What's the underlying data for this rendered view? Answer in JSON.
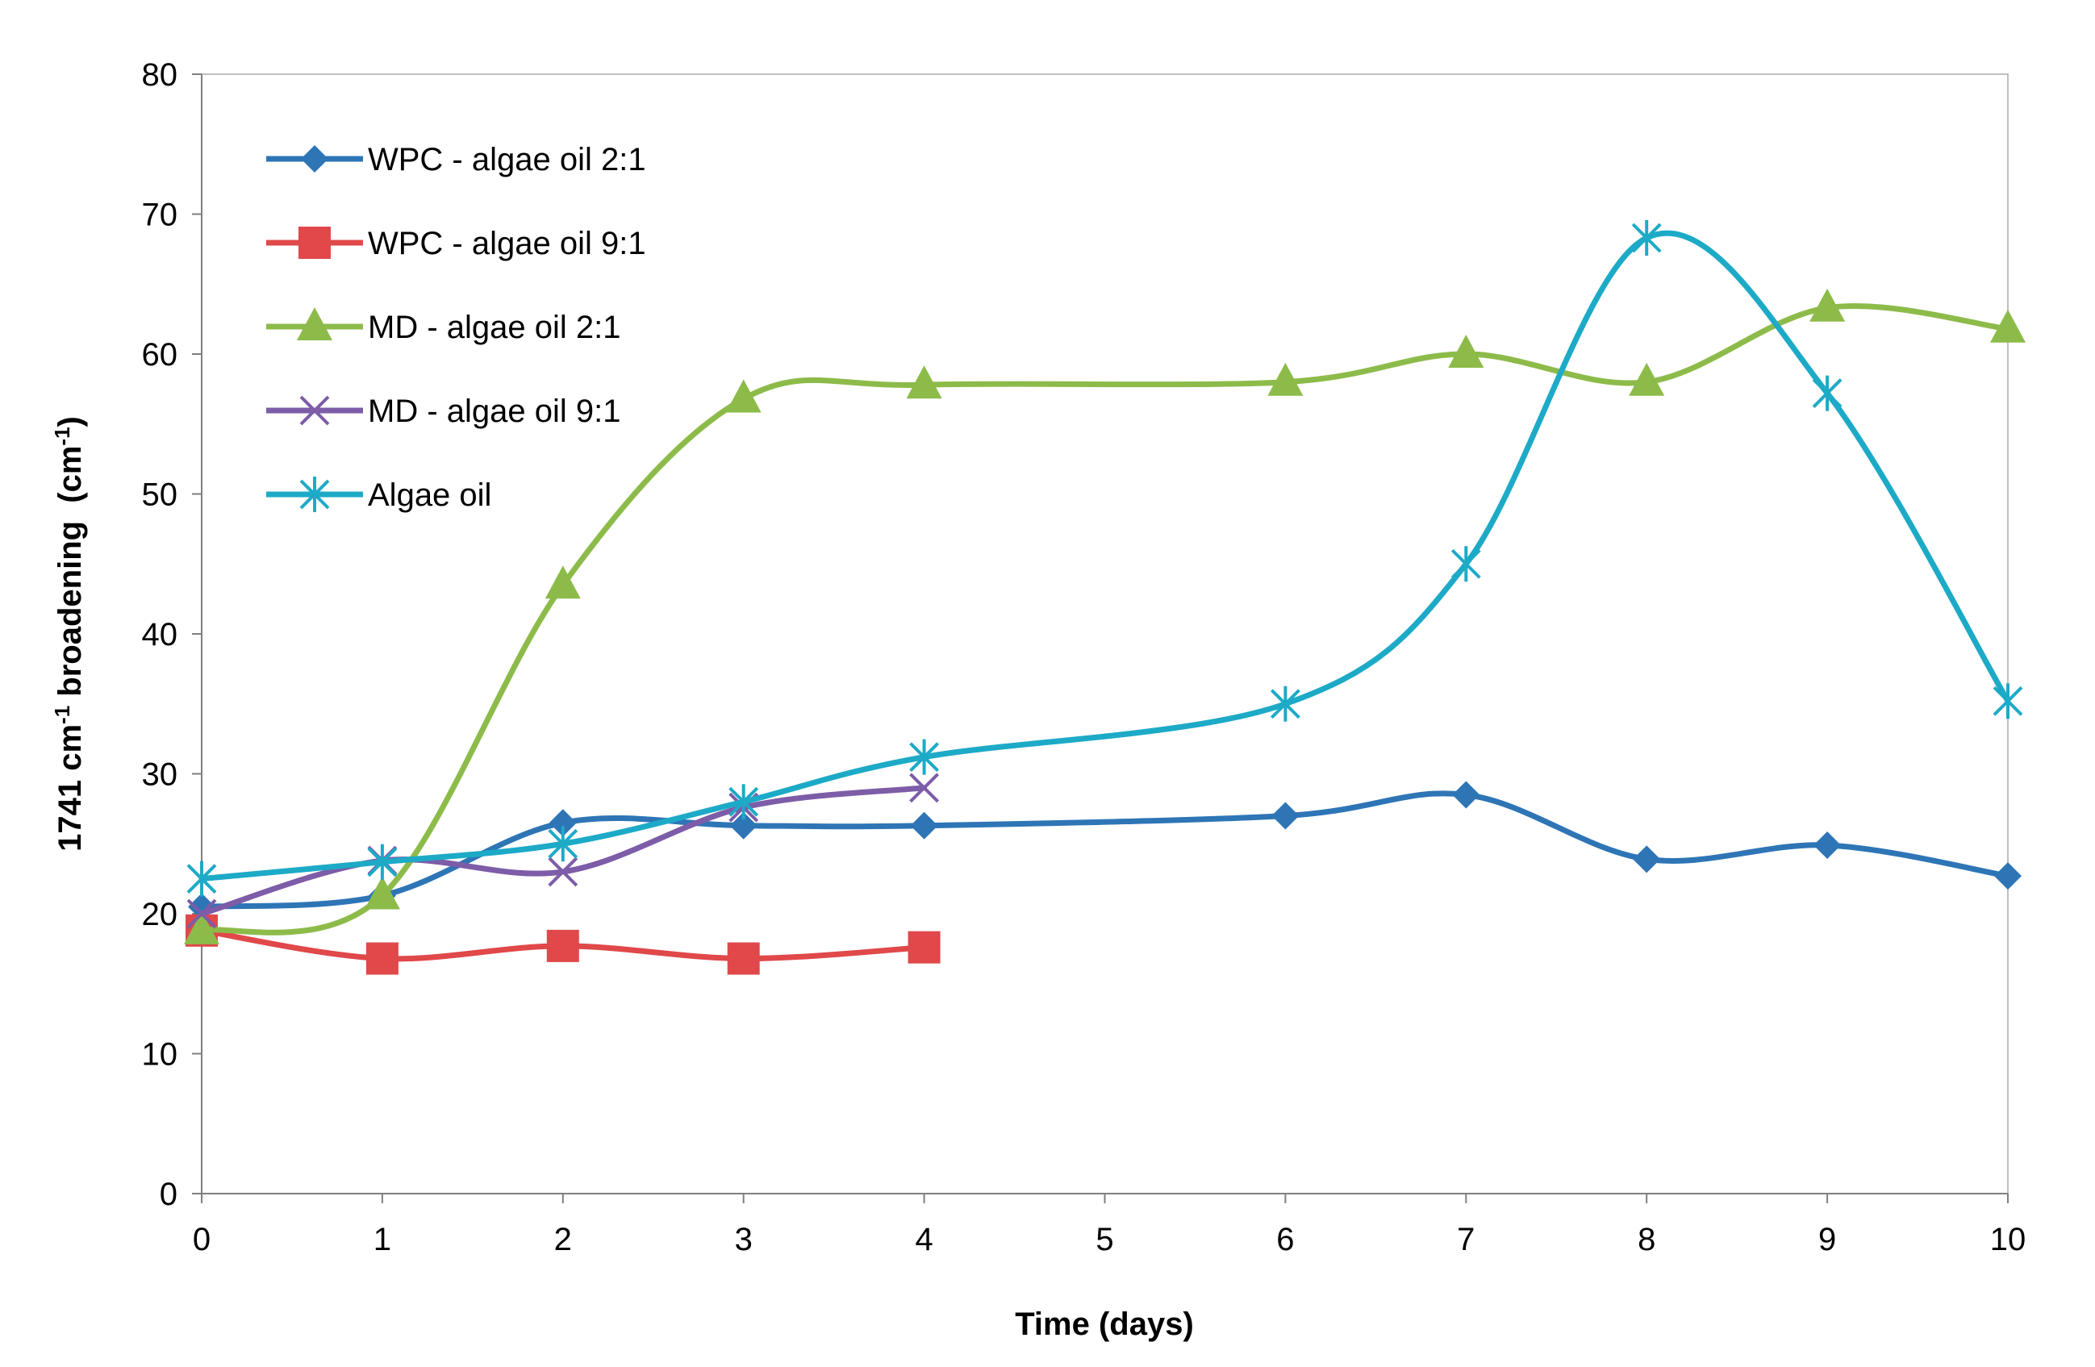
{
  "chart_data": {
    "type": "line",
    "title": "",
    "xlabel": "Time (days)",
    "ylabel": {
      "prefix": "1741 cm",
      "sup1": "-1",
      "middle": " broadening  (cm",
      "sup2": "-1",
      "suffix": ")"
    },
    "xlim": [
      0,
      10
    ],
    "ylim": [
      0,
      80
    ],
    "xticks": [
      {
        "value": 0,
        "label": "0"
      },
      {
        "value": 1,
        "label": "1"
      },
      {
        "value": 2,
        "label": "2"
      },
      {
        "value": 3,
        "label": "3"
      },
      {
        "value": 4,
        "label": "4"
      },
      {
        "value": 5,
        "label": "5"
      },
      {
        "value": 6,
        "label": "6"
      },
      {
        "value": 7,
        "label": "7"
      },
      {
        "value": 8,
        "label": "8"
      },
      {
        "value": 9,
        "label": "9"
      },
      {
        "value": 10,
        "label": "10"
      }
    ],
    "yticks": [
      0,
      10,
      20,
      30,
      40,
      50,
      60,
      70,
      80
    ],
    "grid": false,
    "legend_position": "top-left",
    "series": [
      {
        "name": "WPC - algae oil 2:1",
        "color": "#2E75B6",
        "marker": "diamond",
        "x": [
          0,
          1,
          2,
          3,
          4,
          6,
          7,
          8,
          9,
          10
        ],
        "y": [
          20.5,
          21.3,
          26.5,
          26.3,
          26.3,
          27.0,
          28.5,
          23.9,
          24.9,
          22.7
        ]
      },
      {
        "name": "WPC - algae oil 9:1",
        "color": "#E0484A",
        "marker": "square",
        "x": [
          0,
          1,
          2,
          3,
          4
        ],
        "y": [
          18.8,
          16.8,
          17.7,
          16.8,
          17.6
        ]
      },
      {
        "name": "MD - algae oil 2:1",
        "color": "#8DBB4A",
        "marker": "triangle",
        "x": [
          0,
          1,
          2,
          3,
          4,
          6,
          7,
          8,
          9,
          10
        ],
        "y": [
          18.8,
          21.3,
          43.5,
          56.8,
          57.8,
          58.0,
          60.0,
          58.0,
          63.3,
          61.8
        ]
      },
      {
        "name": "MD - algae oil 9:1",
        "color": "#7D5CA8",
        "marker": "x",
        "x": [
          0,
          1,
          2,
          3,
          4
        ],
        "y": [
          20.0,
          23.8,
          23.0,
          27.6,
          29.0
        ]
      },
      {
        "name": "Algae oil",
        "color": "#1DAAC7",
        "marker": "asterisk",
        "x": [
          0,
          1,
          2,
          3,
          4,
          6,
          7,
          8,
          9,
          10
        ],
        "y": [
          22.5,
          23.7,
          25.0,
          28.0,
          31.2,
          35.0,
          45.0,
          68.3,
          57.2,
          35.2
        ]
      }
    ]
  }
}
